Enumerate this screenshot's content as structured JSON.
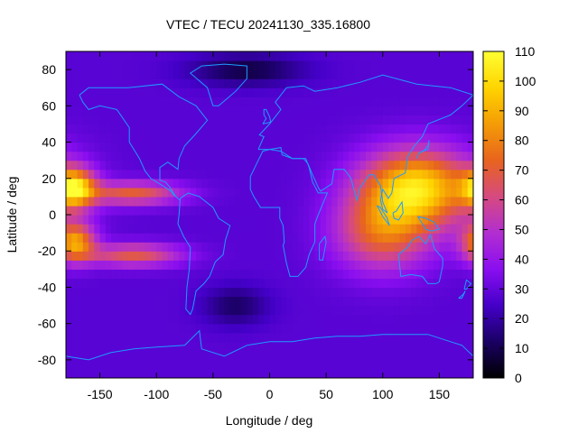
{
  "chart_data": {
    "type": "heatmap",
    "title": "VTEC / TECU 20241130_335.16800",
    "xlabel": "Longitude / deg",
    "ylabel": "Latitude / deg",
    "xlim": [
      -180,
      180
    ],
    "ylim": [
      -90,
      90
    ],
    "x_ticks": [
      -150,
      -100,
      -50,
      0,
      50,
      100,
      150
    ],
    "y_ticks": [
      -80,
      -60,
      -40,
      -20,
      0,
      20,
      40,
      60,
      80
    ],
    "colorbar": {
      "range": [
        0,
        110
      ],
      "ticks": [
        0,
        10,
        20,
        30,
        40,
        50,
        60,
        70,
        80,
        90,
        100,
        110
      ],
      "palette": [
        "#000000",
        "#1a0064",
        "#4400c8",
        "#8a0ef0",
        "#b22ed0",
        "#d64a80",
        "#e8641e",
        "#f49c06",
        "#ffd400",
        "#ffff33"
      ]
    },
    "field_features": [
      {
        "lon": 130,
        "lat": 15,
        "vtec": 100,
        "lon_width": 70,
        "lat_width": 30
      },
      {
        "lon": 100,
        "lat": -10,
        "vtec": 70,
        "lon_width": 60,
        "lat_width": 30
      },
      {
        "lon": -172,
        "lat": 15,
        "vtec": 92,
        "lon_width": 25,
        "lat_width": 15
      },
      {
        "lon": -172,
        "lat": -15,
        "vtec": 85,
        "lon_width": 25,
        "lat_width": 15
      },
      {
        "lon": -120,
        "lat": 12,
        "vtec": 70,
        "lon_width": 60,
        "lat_width": 9
      },
      {
        "lon": -120,
        "lat": -22,
        "vtec": 68,
        "lon_width": 60,
        "lat_width": 9
      },
      {
        "lon": -20,
        "lat": 80,
        "vtec": 8,
        "lon_width": 70,
        "lat_width": 12
      },
      {
        "lon": -30,
        "lat": -50,
        "vtec": 12,
        "lon_width": 40,
        "lat_width": 15
      }
    ],
    "background_vtec": 28,
    "overlay": "coastlines",
    "overlay_color": "#1e9bff"
  }
}
